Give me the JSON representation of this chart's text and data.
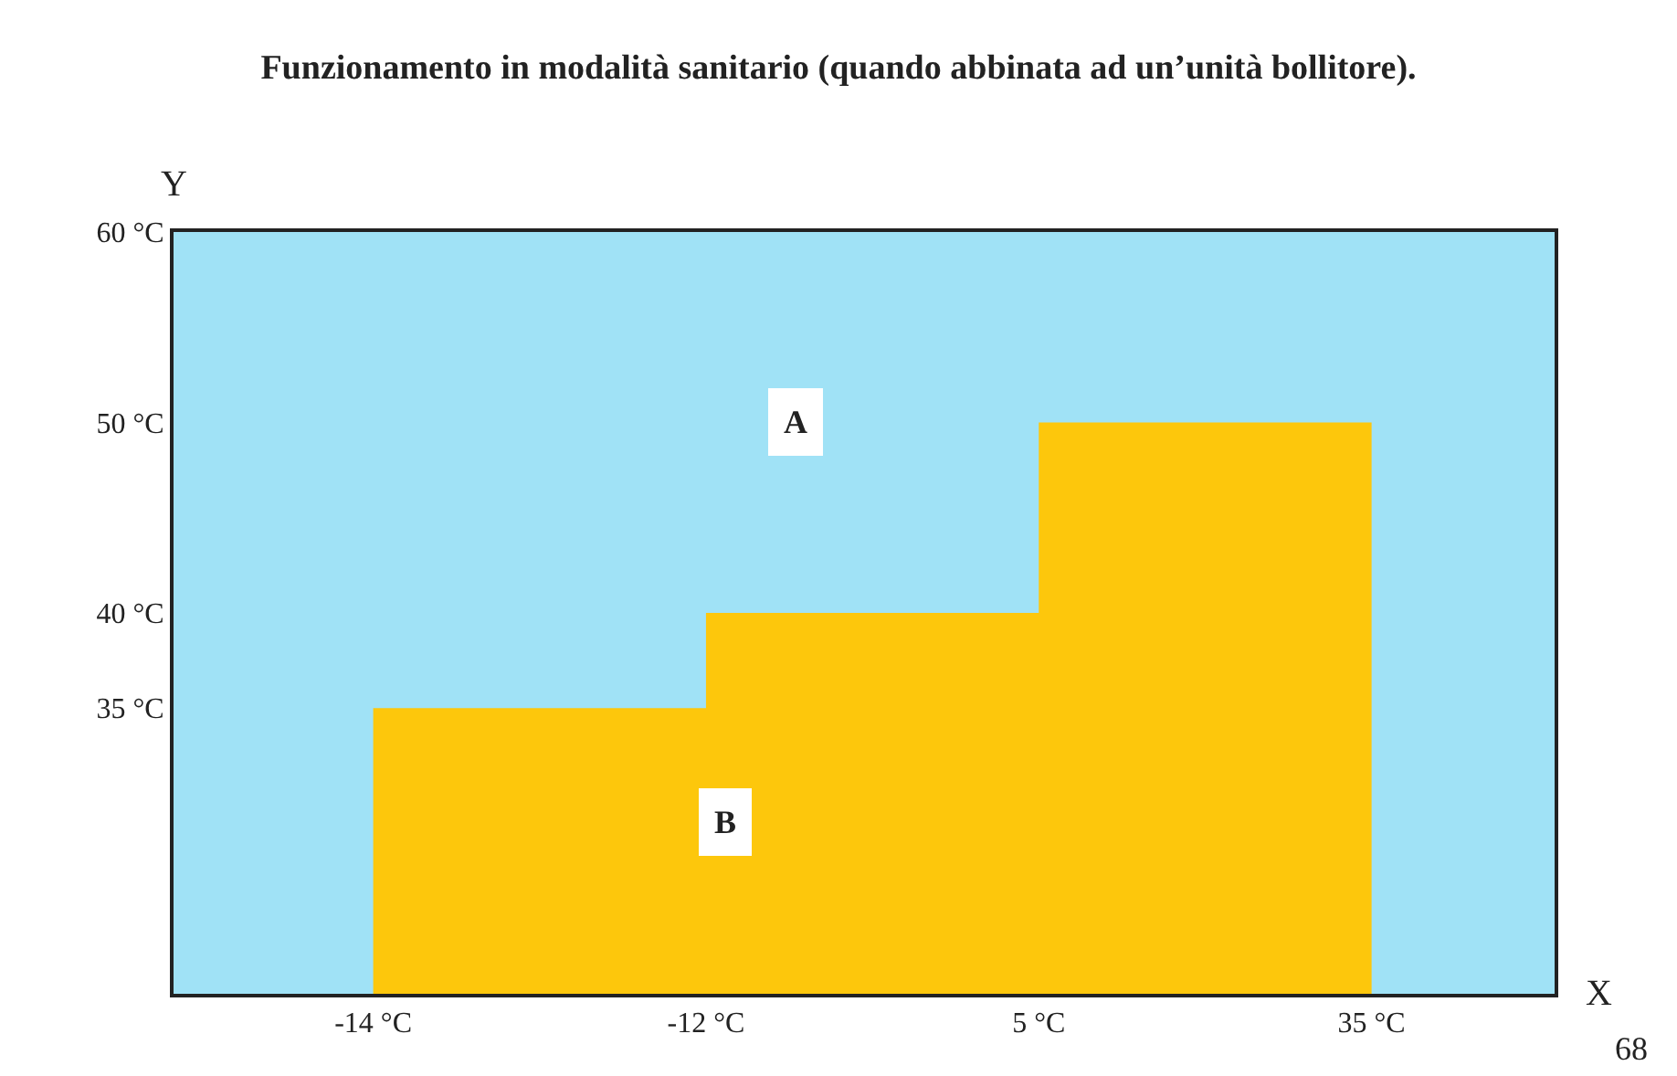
{
  "chart_data": {
    "type": "area",
    "title": "Funzionamento in modalità sanitario (quando abbinata ad un’unità bollitore).",
    "xlabel": "X",
    "ylabel": "Y",
    "categories": [
      "-14 °C",
      "-12 °C",
      "5 °C",
      "35 °C"
    ],
    "series": [
      {
        "color": "#fdc70c",
        "values": [
          35,
          40,
          50,
          50
        ]
      }
    ],
    "ylim": [
      20,
      60
    ],
    "yticks": [
      {
        "value": 35,
        "label": "35 °C"
      },
      {
        "value": 40,
        "label": "40 °C"
      },
      {
        "value": 50,
        "label": "50 °C"
      },
      {
        "value": 60,
        "label": "60 °C"
      }
    ],
    "bands": [
      {
        "axis": "y",
        "from": 20,
        "to": 60,
        "label": "A",
        "color": "#a0e2f6"
      }
    ],
    "annotations": [
      {
        "text": "B",
        "y": 29
      },
      "68"
    ],
    "grid": false
  }
}
